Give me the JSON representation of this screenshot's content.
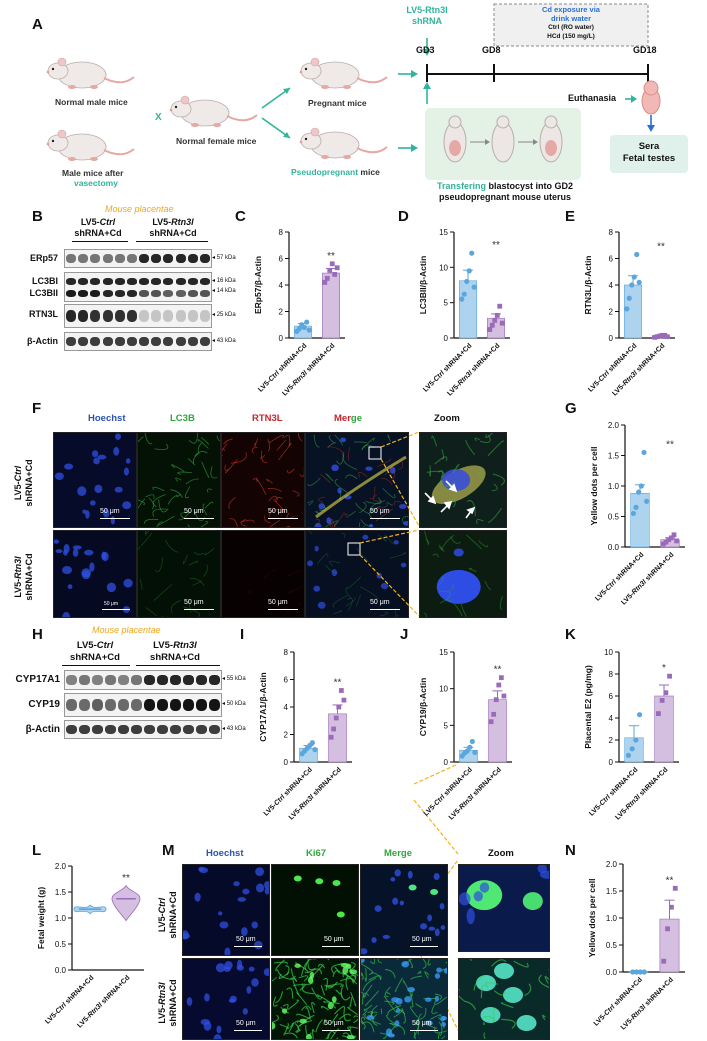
{
  "panelA": {
    "letter": "A",
    "normal_male": "Normal male mice",
    "male_after": "Male  mice after",
    "vasectomy": "vasectomy",
    "cross": "X",
    "normal_female": "Normal female mice",
    "pregnant": "Pregnant mice",
    "pseudo_teal": "Pseudopregnant",
    "pseudo_rest": " mice",
    "shrna_line1": "LV5-Rtn3l",
    "shrna_line2": "shRNA",
    "cd_title1": "Cd exposure via",
    "cd_title2": "drink water",
    "cd_ctrl": "Ctrl (RO water)",
    "cd_hcd": "HCd (150 mg/L)",
    "gd3": "GD3",
    "gd8": "GD8",
    "gd18": "GD18",
    "euthanasia": "Euthanasia",
    "sera": "Sera",
    "fetal_testes": "Fetal testes",
    "transfer_teal": "Transfering",
    "transfer_rest": " blastocyst into GD2",
    "transfer_line2": "pseudopregnant mouse uterus"
  },
  "blotB": {
    "letter": "B",
    "title": "Mouse placentae",
    "grp1_a": "LV5-",
    "grp1_b": "Ctrl",
    "grp1_c": "shRNA+Cd",
    "grp2_a": "LV5-",
    "grp2_b": "Rtn3l",
    "grp2_c": "shRNA+Cd",
    "rows": [
      {
        "name": "ERp57",
        "kda": "57 kDa"
      },
      {
        "name": "LC3BI",
        "kda": "16 kDa"
      },
      {
        "name": "LC3BII",
        "kda": "14 kDa"
      },
      {
        "name": "RTN3L",
        "kda": "25 kDa"
      },
      {
        "name": "β-Actin",
        "kda": "43 kDa"
      }
    ]
  },
  "blotH": {
    "letter": "H",
    "title": "Mouse placentae",
    "grp1_a": "LV5-",
    "grp1_b": "Ctrl",
    "grp1_c": "shRNA+Cd",
    "grp2_a": "LV5-",
    "grp2_b": "Rtn3l",
    "grp2_c": "shRNA+Cd",
    "rows": [
      {
        "name": "CYP17A1",
        "kda": "55 kDa"
      },
      {
        "name": "CYP19",
        "kda": "50 kDa"
      },
      {
        "name": "β-Actin",
        "kda": "43 kDa"
      }
    ]
  },
  "micro": {
    "F": {
      "letter": "F",
      "headers": [
        "Hoechst",
        "LC3B",
        "RTN3L",
        "Merge",
        "Zoom"
      ],
      "merge_a": "Mer",
      "merge_b": "ge",
      "rows": [
        [
          "LV5-",
          "Ctrl",
          "shRNA+Cd"
        ],
        [
          "LV5-",
          "Rtn3l",
          "shRNA+Cd"
        ]
      ],
      "scale": "50 μm"
    },
    "M": {
      "letter": "M",
      "headers": [
        "Hoechst",
        "Ki67",
        "Merge",
        "Zoom"
      ],
      "rows": [
        [
          "LV5-",
          "Ctrl",
          "shRNA+Cd"
        ],
        [
          "LV5-",
          "Rtn3l",
          "shRNA+Cd"
        ]
      ],
      "scale": "50 μm"
    }
  },
  "colors": {
    "ctrl": "#aed3ef",
    "ctrl_dot": "#5ba6dc",
    "rtn": "#d4bfe0",
    "rtn_dot": "#9a6bb8",
    "teal": "#2fb59a",
    "hoechst": "#2b53b0",
    "green": "#2fa63a",
    "red": "#c8262a"
  },
  "chart_data": [
    {
      "panel": "C",
      "type": "bar",
      "ylabel": "ERp57/β-Actin",
      "categories": [
        "LV5-Ctrl shRNA+Cd",
        "LV5-Rtn3l shRNA+Cd"
      ],
      "values": [
        0.9,
        4.9
      ],
      "errors": [
        0.2,
        0.35
      ],
      "points": [
        [
          0.5,
          0.7,
          1.0,
          0.8,
          1.2,
          0.6
        ],
        [
          4.2,
          4.5,
          5.1,
          5.6,
          4.8,
          5.3
        ]
      ],
      "ylim": [
        0,
        8
      ],
      "yticks": [
        0,
        2,
        4,
        6,
        8
      ],
      "sig": "**"
    },
    {
      "panel": "D",
      "type": "bar",
      "ylabel": "LC3BII/β-Actin",
      "categories": [
        "LV5-Ctrl shRNA+Cd",
        "LV5-Rtn3l shRNA+Cd"
      ],
      "values": [
        8.1,
        2.8
      ],
      "errors": [
        1.5,
        0.6
      ],
      "points": [
        [
          5.5,
          6.2,
          8.0,
          9.5,
          12.0,
          7.2
        ],
        [
          1.2,
          1.8,
          2.5,
          3.2,
          4.5,
          2.1
        ]
      ],
      "ylim": [
        0,
        15
      ],
      "yticks": [
        0,
        5,
        10,
        15
      ],
      "sig": "**"
    },
    {
      "panel": "E",
      "type": "bar",
      "ylabel": "RTN3L/β-Actin",
      "categories": [
        "LV5-Ctrl shRNA+Cd",
        "LV5-Rtn3l shRNA+Cd"
      ],
      "values": [
        4.0,
        0.15
      ],
      "errors": [
        0.7,
        0.05
      ],
      "points": [
        [
          2.2,
          3.0,
          4.0,
          4.6,
          6.3,
          4.2
        ],
        [
          0.05,
          0.1,
          0.15,
          0.2,
          0.2,
          0.1
        ]
      ],
      "ylim": [
        0,
        8
      ],
      "yticks": [
        0,
        2,
        4,
        6,
        8
      ],
      "sig": "**"
    },
    {
      "panel": "G",
      "type": "bar",
      "ylabel": "Yellow dots  per cell",
      "categories": [
        "LV5-Ctrl shRNA+Cd",
        "LV5-Rtn3l shRNA+Cd"
      ],
      "values": [
        0.88,
        0.12
      ],
      "errors": [
        0.14,
        0.03
      ],
      "points": [
        [
          0.55,
          0.65,
          0.9,
          1.0,
          1.55,
          0.75
        ],
        [
          0.05,
          0.08,
          0.12,
          0.15,
          0.2,
          0.1
        ]
      ],
      "ylim": [
        0,
        2.0
      ],
      "yticks": [
        0.0,
        0.5,
        1.0,
        1.5,
        2.0
      ],
      "sig": "**"
    },
    {
      "panel": "I",
      "type": "bar",
      "ylabel": "CYP17A1/β-Actin",
      "categories": [
        "LV5-Ctrl shRNA+Cd",
        "LV5-Rtn3l shRNA+Cd"
      ],
      "values": [
        1.0,
        3.5
      ],
      "errors": [
        0.2,
        0.65
      ],
      "points": [
        [
          0.6,
          0.8,
          1.0,
          1.2,
          1.4,
          0.9
        ],
        [
          1.8,
          2.4,
          3.2,
          4.0,
          5.2,
          4.5
        ]
      ],
      "ylim": [
        0,
        8
      ],
      "yticks": [
        0,
        2,
        4,
        6,
        8
      ],
      "sig": "**"
    },
    {
      "panel": "J",
      "type": "bar",
      "ylabel": "CYP19/β-Actin",
      "categories": [
        "LV5-Ctrl shRNA+Cd",
        "LV5-Rtn3l shRNA+Cd"
      ],
      "values": [
        1.6,
        8.5
      ],
      "errors": [
        0.4,
        1.2
      ],
      "points": [
        [
          0.8,
          1.2,
          1.5,
          2.0,
          2.8,
          1.3
        ],
        [
          5.5,
          6.5,
          8.5,
          10.5,
          11.5,
          9.0
        ]
      ],
      "ylim": [
        0,
        15
      ],
      "yticks": [
        0,
        5,
        10,
        15
      ],
      "sig": "**"
    },
    {
      "panel": "K",
      "type": "bar",
      "ylabel": "Placental E2 (pg/mg)",
      "categories": [
        "LV5-Ctrl shRNA+Cd",
        "LV5-Rtn3l shRNA+Cd"
      ],
      "values": [
        2.2,
        6.0
      ],
      "errors": [
        1.1,
        1.0
      ],
      "points": [
        [
          0.6,
          1.2,
          2.0,
          4.3
        ],
        [
          4.4,
          5.6,
          6.3,
          7.8
        ]
      ],
      "ylim": [
        0,
        10
      ],
      "yticks": [
        0,
        2,
        4,
        6,
        8,
        10
      ],
      "sig": "*"
    },
    {
      "panel": "L",
      "type": "violin",
      "ylabel": "Fetal weight (g)",
      "categories": [
        "LV5-Ctrl shRNA+Cd",
        "LV5-Rtn3l shRNA+Cd"
      ],
      "medians": [
        1.17,
        1.37
      ],
      "ranges": [
        [
          1.08,
          1.25
        ],
        [
          0.95,
          1.62
        ]
      ],
      "ylim": [
        0.0,
        2.0
      ],
      "yticks": [
        0.0,
        0.5,
        1.0,
        1.5,
        2.0
      ],
      "sig": "**"
    },
    {
      "panel": "N",
      "type": "bar",
      "ylabel": "Yellow dots  per cell",
      "categories": [
        "LV5-Ctrl shRNA+Cd",
        "LV5-Rtn3l shRNA+Cd"
      ],
      "values": [
        0.0,
        0.98
      ],
      "errors": [
        0.0,
        0.35
      ],
      "points": [
        [
          0,
          0,
          0,
          0
        ],
        [
          0.2,
          0.8,
          1.2,
          1.55
        ]
      ],
      "ylim": [
        0,
        2.0
      ],
      "yticks": [
        0.0,
        0.5,
        1.0,
        1.5,
        2.0
      ],
      "sig": "**"
    }
  ]
}
